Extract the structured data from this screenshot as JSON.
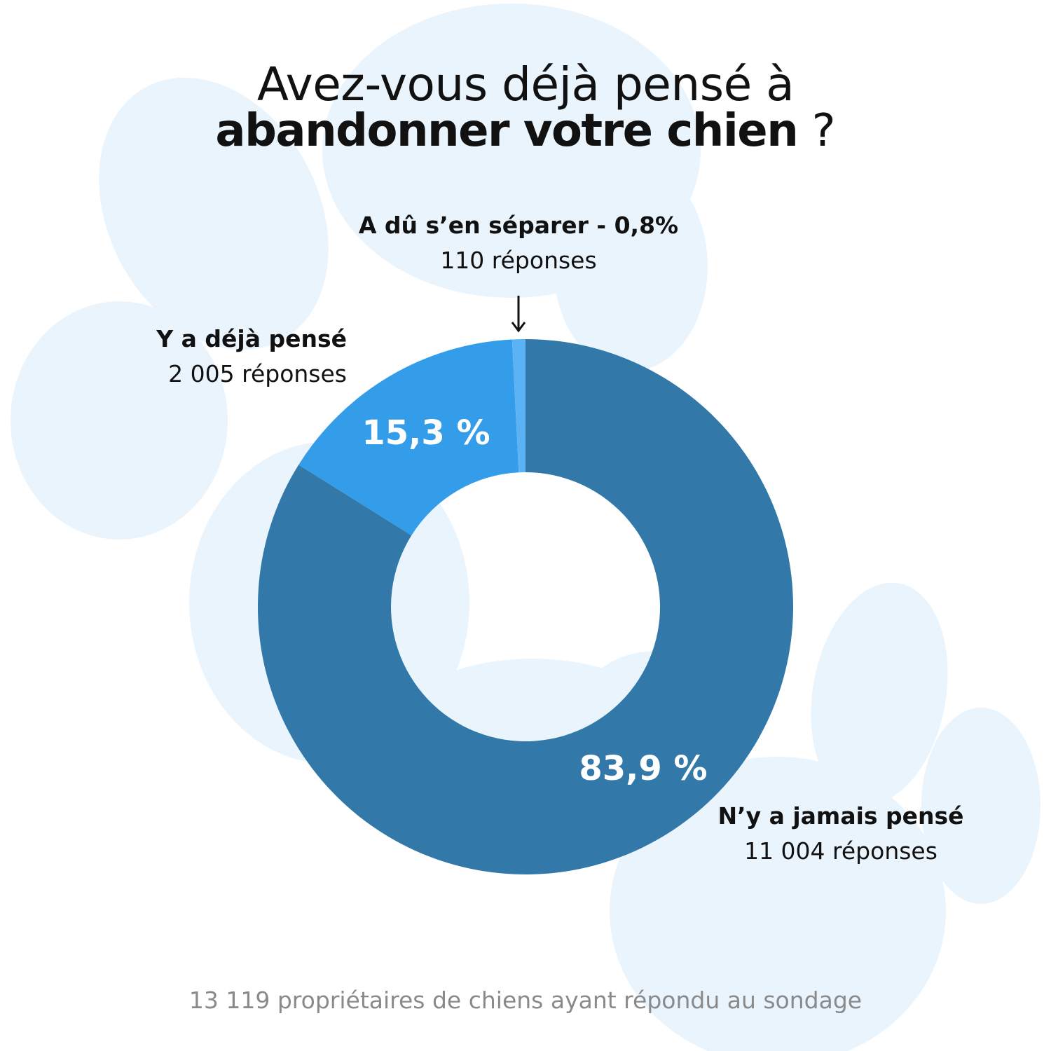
{
  "title": {
    "line1": "Avez-vous déjà pensé à",
    "line2_bold": "abandonner votre chien",
    "line2_rest": " ?"
  },
  "colors": {
    "background_paw": "#eaf4fd",
    "never": "#3278a9",
    "thought": "#339dea",
    "separated": "#5bb2f5",
    "text": "#111111",
    "footer": "#8a8a8a"
  },
  "chart_data": {
    "type": "pie",
    "style": "donut",
    "slices": [
      {
        "name": "N’y a jamais pensé",
        "value": 83.9,
        "count": "11 004 réponses",
        "data_label": "83,9 %",
        "color": "#3278a9"
      },
      {
        "name": "Y a déjà pensé",
        "value": 15.3,
        "count": "2 005 réponses",
        "data_label": "15,3 %",
        "color": "#339dea"
      },
      {
        "name": "A dû s’en séparer",
        "value": 0.8,
        "count": "110 réponses",
        "data_label": "",
        "color": "#5bb2f5"
      }
    ]
  },
  "labels": {
    "separated_title": "A dû s’en séparer - 0,8%",
    "separated_count": "110 réponses",
    "arrow_icon": "down-arrow-icon",
    "thought_title": "Y a déjà pensé",
    "thought_count": "2 005 réponses",
    "never_title": "N’y a jamais pensé",
    "never_count": "11 004 réponses"
  },
  "footer": "13 119 propriétaires de chiens ayant répondu au sondage"
}
